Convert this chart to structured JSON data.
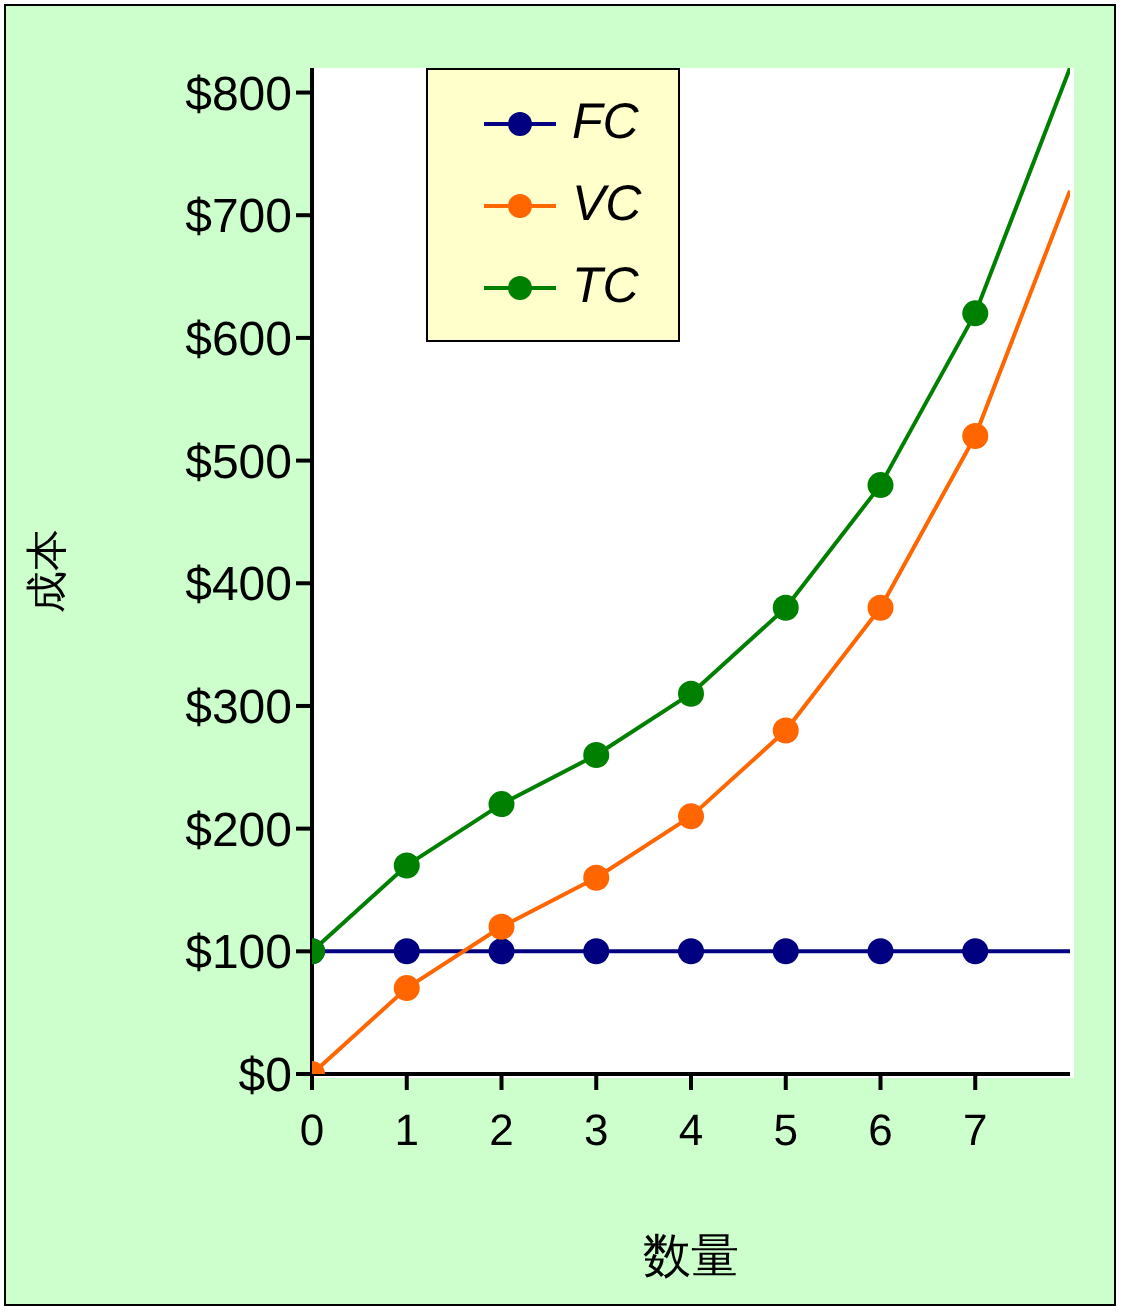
{
  "chart_data": {
    "type": "line",
    "xlabel": "数量",
    "ylabel": "成本",
    "x": [
      0,
      1,
      2,
      3,
      4,
      5,
      6,
      7,
      8
    ],
    "xlim": [
      0,
      8
    ],
    "xticks": [
      0,
      1,
      2,
      3,
      4,
      5,
      6,
      7
    ],
    "ylim": [
      0,
      820
    ],
    "yticks": [
      {
        "value": 0,
        "label": "$0"
      },
      {
        "value": 100,
        "label": "$100"
      },
      {
        "value": 200,
        "label": "$200"
      },
      {
        "value": 300,
        "label": "$300"
      },
      {
        "value": 400,
        "label": "$400"
      },
      {
        "value": 500,
        "label": "$500"
      },
      {
        "value": 600,
        "label": "$600"
      },
      {
        "value": 700,
        "label": "$700"
      },
      {
        "value": 800,
        "label": "$800"
      }
    ],
    "series": [
      {
        "name": "FC",
        "color": "#000080",
        "values": [
          100,
          100,
          100,
          100,
          100,
          100,
          100,
          100,
          100
        ]
      },
      {
        "name": "VC",
        "color": "#ff6600",
        "values": [
          0,
          70,
          120,
          160,
          210,
          280,
          380,
          520,
          720
        ]
      },
      {
        "name": "TC",
        "color": "#008000",
        "values": [
          100,
          170,
          220,
          260,
          310,
          380,
          480,
          620,
          820
        ]
      }
    ],
    "legend": "top left",
    "marker": "circle",
    "line_style": "solid"
  }
}
